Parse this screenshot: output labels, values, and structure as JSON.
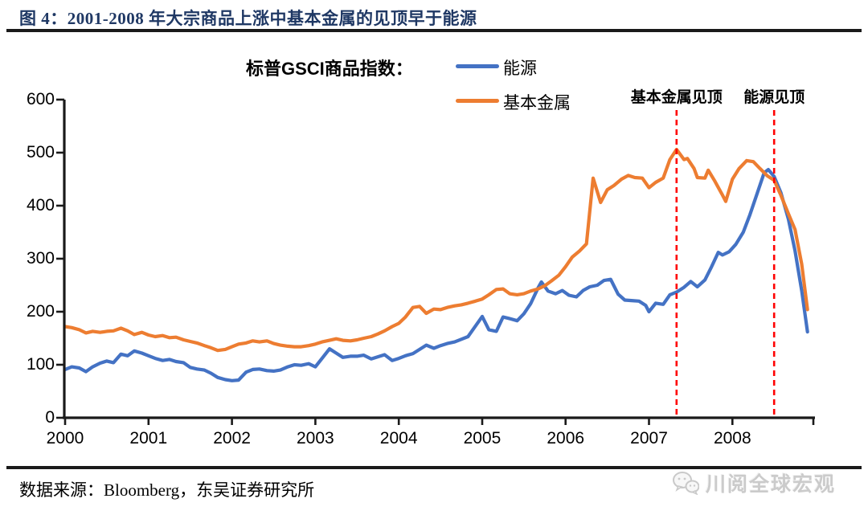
{
  "figure": {
    "title": "图 4：2001-2008 年大宗商品上涨中基本金属的见顶早于能源",
    "source": "数据来源：Bloomberg，东吴证券研究所",
    "watermark": "川阅全球宏观"
  },
  "legend": {
    "title": "标普GSCI商品指数：",
    "items": [
      {
        "label": "能源",
        "color": "#4472C4"
      },
      {
        "label": "基本金属",
        "color": "#ED7D31"
      }
    ]
  },
  "annotations": [
    {
      "label": "基本金属见顶",
      "x": 2007.33,
      "color": "#FF0000"
    },
    {
      "label": "能源见顶",
      "x": 2008.5,
      "color": "#FF0000"
    }
  ],
  "chart_data": {
    "type": "line",
    "title": "标普GSCI商品指数",
    "xlabel": "",
    "ylabel": "",
    "grid": false,
    "legend_position": "top",
    "x_axis": {
      "ticks": [
        2000,
        2001,
        2002,
        2003,
        2004,
        2005,
        2006,
        2007,
        2008
      ],
      "range": [
        2000,
        2008.97
      ]
    },
    "y_axis": {
      "ticks": [
        0,
        100,
        200,
        300,
        400,
        500,
        600
      ],
      "range": [
        0,
        600
      ]
    },
    "vlines": [
      {
        "x": 2007.33,
        "label": "基本金属见顶",
        "style": "dashed",
        "color": "#FF0000"
      },
      {
        "x": 2008.5,
        "label": "能源见顶",
        "style": "dashed",
        "color": "#FF0000"
      }
    ],
    "series": [
      {
        "name": "能源",
        "color": "#4472C4",
        "points": [
          [
            2000.0,
            91
          ],
          [
            2000.08,
            96
          ],
          [
            2000.17,
            94
          ],
          [
            2000.25,
            87
          ],
          [
            2000.33,
            96
          ],
          [
            2000.42,
            103
          ],
          [
            2000.5,
            107
          ],
          [
            2000.58,
            104
          ],
          [
            2000.67,
            120
          ],
          [
            2000.75,
            117
          ],
          [
            2000.83,
            126
          ],
          [
            2000.92,
            122
          ],
          [
            2001.0,
            117
          ],
          [
            2001.08,
            112
          ],
          [
            2001.17,
            108
          ],
          [
            2001.25,
            110
          ],
          [
            2001.33,
            106
          ],
          [
            2001.42,
            104
          ],
          [
            2001.5,
            95
          ],
          [
            2001.58,
            92
          ],
          [
            2001.67,
            90
          ],
          [
            2001.75,
            84
          ],
          [
            2001.83,
            76
          ],
          [
            2001.92,
            72
          ],
          [
            2002.0,
            70
          ],
          [
            2002.08,
            71
          ],
          [
            2002.17,
            86
          ],
          [
            2002.25,
            91
          ],
          [
            2002.33,
            92
          ],
          [
            2002.42,
            89
          ],
          [
            2002.5,
            88
          ],
          [
            2002.58,
            90
          ],
          [
            2002.67,
            96
          ],
          [
            2002.75,
            100
          ],
          [
            2002.83,
            99
          ],
          [
            2002.92,
            102
          ],
          [
            2003.0,
            96
          ],
          [
            2003.08,
            112
          ],
          [
            2003.17,
            130
          ],
          [
            2003.25,
            122
          ],
          [
            2003.33,
            114
          ],
          [
            2003.42,
            116
          ],
          [
            2003.5,
            116
          ],
          [
            2003.58,
            118
          ],
          [
            2003.67,
            111
          ],
          [
            2003.75,
            115
          ],
          [
            2003.83,
            119
          ],
          [
            2003.92,
            108
          ],
          [
            2004.0,
            112
          ],
          [
            2004.08,
            117
          ],
          [
            2004.17,
            121
          ],
          [
            2004.25,
            129
          ],
          [
            2004.33,
            137
          ],
          [
            2004.42,
            131
          ],
          [
            2004.5,
            136
          ],
          [
            2004.58,
            140
          ],
          [
            2004.67,
            143
          ],
          [
            2004.75,
            148
          ],
          [
            2004.83,
            153
          ],
          [
            2004.92,
            173
          ],
          [
            2005.0,
            191
          ],
          [
            2005.08,
            166
          ],
          [
            2005.17,
            163
          ],
          [
            2005.25,
            190
          ],
          [
            2005.33,
            187
          ],
          [
            2005.42,
            183
          ],
          [
            2005.5,
            196
          ],
          [
            2005.58,
            215
          ],
          [
            2005.67,
            245
          ],
          [
            2005.71,
            256
          ],
          [
            2005.79,
            239
          ],
          [
            2005.88,
            234
          ],
          [
            2005.96,
            240
          ],
          [
            2006.04,
            231
          ],
          [
            2006.13,
            228
          ],
          [
            2006.21,
            240
          ],
          [
            2006.29,
            247
          ],
          [
            2006.38,
            250
          ],
          [
            2006.46,
            259
          ],
          [
            2006.54,
            261
          ],
          [
            2006.63,
            233
          ],
          [
            2006.71,
            222
          ],
          [
            2006.79,
            221
          ],
          [
            2006.88,
            220
          ],
          [
            2006.96,
            212
          ],
          [
            2007.0,
            200
          ],
          [
            2007.08,
            216
          ],
          [
            2007.17,
            214
          ],
          [
            2007.25,
            232
          ],
          [
            2007.33,
            237
          ],
          [
            2007.42,
            246
          ],
          [
            2007.5,
            257
          ],
          [
            2007.58,
            247
          ],
          [
            2007.67,
            260
          ],
          [
            2007.75,
            285
          ],
          [
            2007.83,
            312
          ],
          [
            2007.88,
            307
          ],
          [
            2007.96,
            313
          ],
          [
            2008.04,
            327
          ],
          [
            2008.13,
            350
          ],
          [
            2008.21,
            383
          ],
          [
            2008.29,
            420
          ],
          [
            2008.38,
            462
          ],
          [
            2008.43,
            468
          ],
          [
            2008.5,
            455
          ],
          [
            2008.58,
            425
          ],
          [
            2008.67,
            375
          ],
          [
            2008.75,
            315
          ],
          [
            2008.83,
            240
          ],
          [
            2008.9,
            162
          ]
        ]
      },
      {
        "name": "基本金属",
        "color": "#ED7D31",
        "points": [
          [
            2000.0,
            172
          ],
          [
            2000.08,
            170
          ],
          [
            2000.17,
            166
          ],
          [
            2000.25,
            160
          ],
          [
            2000.33,
            163
          ],
          [
            2000.42,
            161
          ],
          [
            2000.5,
            163
          ],
          [
            2000.58,
            164
          ],
          [
            2000.67,
            169
          ],
          [
            2000.75,
            164
          ],
          [
            2000.83,
            157
          ],
          [
            2000.92,
            161
          ],
          [
            2001.0,
            156
          ],
          [
            2001.08,
            153
          ],
          [
            2001.17,
            155
          ],
          [
            2001.25,
            151
          ],
          [
            2001.33,
            152
          ],
          [
            2001.42,
            147
          ],
          [
            2001.5,
            144
          ],
          [
            2001.58,
            141
          ],
          [
            2001.67,
            136
          ],
          [
            2001.75,
            132
          ],
          [
            2001.83,
            127
          ],
          [
            2001.92,
            129
          ],
          [
            2002.0,
            134
          ],
          [
            2002.08,
            139
          ],
          [
            2002.17,
            141
          ],
          [
            2002.25,
            145
          ],
          [
            2002.33,
            143
          ],
          [
            2002.42,
            145
          ],
          [
            2002.5,
            140
          ],
          [
            2002.58,
            137
          ],
          [
            2002.67,
            135
          ],
          [
            2002.75,
            134
          ],
          [
            2002.83,
            134
          ],
          [
            2002.92,
            136
          ],
          [
            2003.0,
            139
          ],
          [
            2003.08,
            143
          ],
          [
            2003.17,
            146
          ],
          [
            2003.25,
            149
          ],
          [
            2003.33,
            146
          ],
          [
            2003.42,
            145
          ],
          [
            2003.5,
            147
          ],
          [
            2003.58,
            150
          ],
          [
            2003.67,
            153
          ],
          [
            2003.75,
            158
          ],
          [
            2003.83,
            164
          ],
          [
            2003.92,
            172
          ],
          [
            2004.0,
            178
          ],
          [
            2004.08,
            190
          ],
          [
            2004.17,
            208
          ],
          [
            2004.25,
            210
          ],
          [
            2004.33,
            197
          ],
          [
            2004.42,
            205
          ],
          [
            2004.5,
            204
          ],
          [
            2004.58,
            208
          ],
          [
            2004.67,
            211
          ],
          [
            2004.75,
            213
          ],
          [
            2004.83,
            216
          ],
          [
            2004.92,
            220
          ],
          [
            2005.0,
            224
          ],
          [
            2005.08,
            232
          ],
          [
            2005.17,
            242
          ],
          [
            2005.25,
            243
          ],
          [
            2005.33,
            234
          ],
          [
            2005.42,
            232
          ],
          [
            2005.5,
            234
          ],
          [
            2005.58,
            239
          ],
          [
            2005.67,
            243
          ],
          [
            2005.75,
            249
          ],
          [
            2005.83,
            258
          ],
          [
            2005.92,
            269
          ],
          [
            2006.0,
            285
          ],
          [
            2006.08,
            303
          ],
          [
            2006.17,
            315
          ],
          [
            2006.25,
            328
          ],
          [
            2006.33,
            452
          ],
          [
            2006.42,
            406
          ],
          [
            2006.5,
            430
          ],
          [
            2006.58,
            438
          ],
          [
            2006.67,
            450
          ],
          [
            2006.75,
            457
          ],
          [
            2006.83,
            453
          ],
          [
            2006.92,
            452
          ],
          [
            2007.0,
            434
          ],
          [
            2007.08,
            444
          ],
          [
            2007.17,
            452
          ],
          [
            2007.25,
            487
          ],
          [
            2007.33,
            506
          ],
          [
            2007.42,
            487
          ],
          [
            2007.46,
            489
          ],
          [
            2007.54,
            470
          ],
          [
            2007.58,
            453
          ],
          [
            2007.67,
            452
          ],
          [
            2007.71,
            467
          ],
          [
            2007.79,
            446
          ],
          [
            2007.88,
            420
          ],
          [
            2007.92,
            408
          ],
          [
            2008.0,
            450
          ],
          [
            2008.08,
            470
          ],
          [
            2008.17,
            485
          ],
          [
            2008.25,
            483
          ],
          [
            2008.33,
            470
          ],
          [
            2008.42,
            456
          ],
          [
            2008.5,
            448
          ],
          [
            2008.58,
            420
          ],
          [
            2008.67,
            385
          ],
          [
            2008.75,
            355
          ],
          [
            2008.83,
            290
          ],
          [
            2008.9,
            204
          ]
        ]
      }
    ]
  }
}
